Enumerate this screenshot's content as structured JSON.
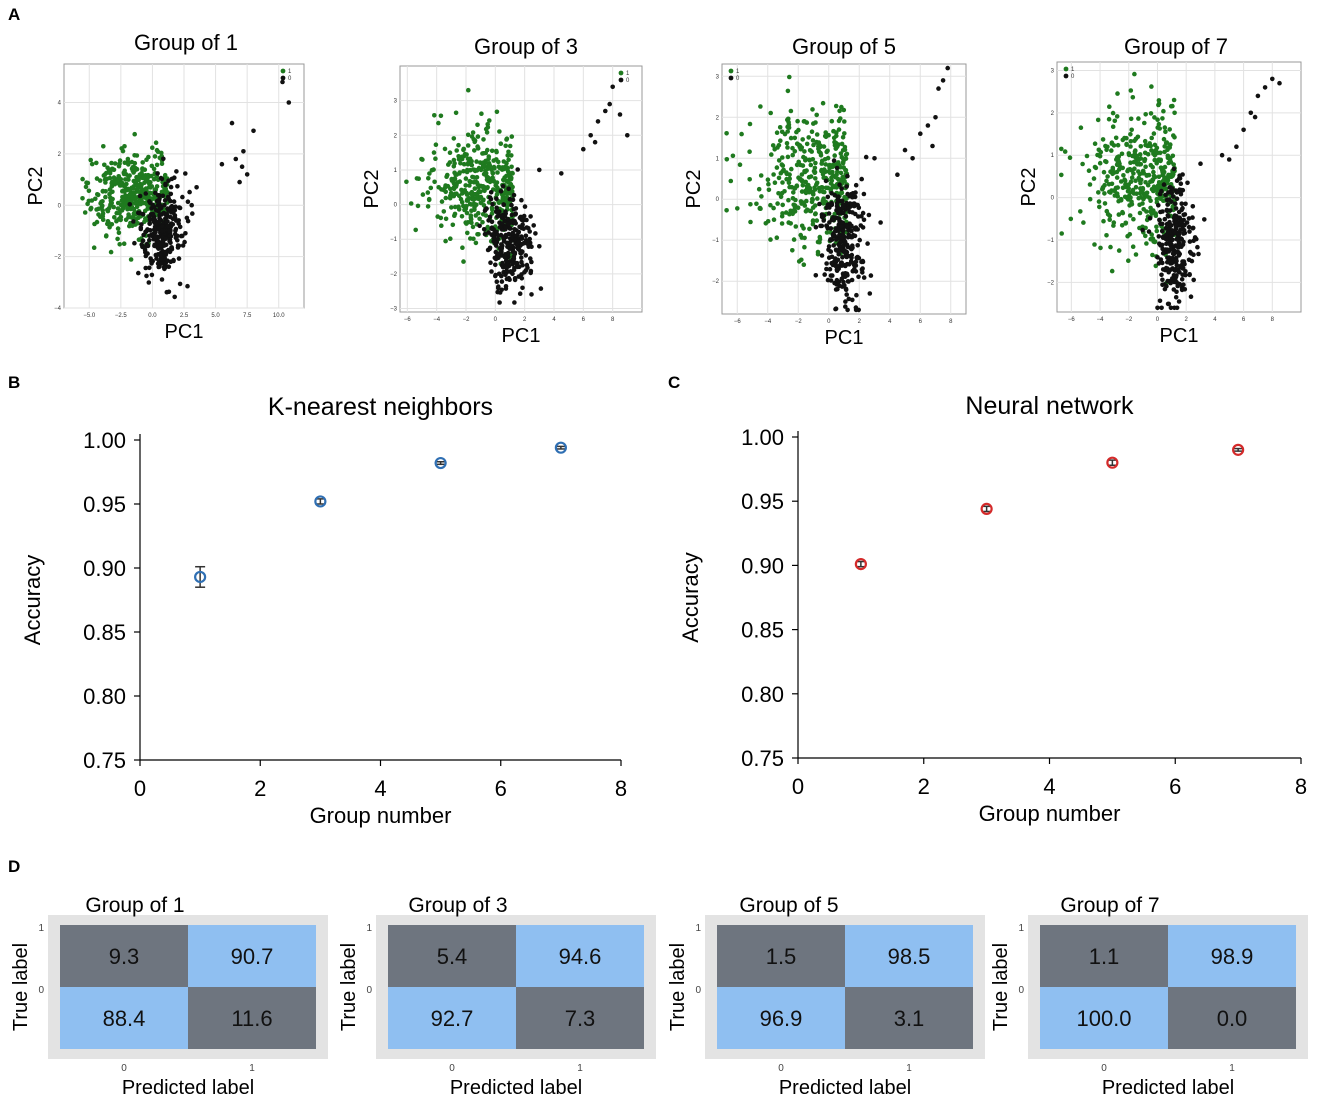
{
  "panel_letters": [
    "A",
    "B",
    "C",
    "D"
  ],
  "chart_data": [
    {
      "type": "scatter",
      "panel": "A",
      "title": "Group of 1",
      "xlabel": "PC1",
      "ylabel": "PC2",
      "xlim": [
        -7,
        12
      ],
      "ylim": [
        -4,
        5.5
      ],
      "xticks": [
        -5.0,
        -2.5,
        0.0,
        2.5,
        5.0,
        7.5,
        10.0
      ],
      "xtick_labels": [
        "−5.0",
        "−2.5",
        "0.0",
        "2.5",
        "5.0",
        "7.5",
        "10.0"
      ],
      "yticks": [
        -4,
        -2,
        0,
        2,
        4
      ],
      "ytick_labels": [
        "−4",
        "−2",
        "0",
        "2",
        "4"
      ],
      "legend": [
        "1",
        "0"
      ],
      "legend_position": "top-right",
      "series": [
        {
          "name": "1",
          "color": "#1f7a1f",
          "center": [
            -1.5,
            0.4
          ],
          "spread": [
            1.9,
            0.85
          ],
          "count": 420
        },
        {
          "name": "0",
          "color": "#111111",
          "center": [
            0.8,
            -1.0
          ],
          "spread": [
            0.9,
            0.85
          ],
          "count": 300,
          "tail": [
            [
              3.5,
              0.7
            ],
            [
              5.5,
              1.6
            ],
            [
              6.6,
              1.8
            ],
            [
              7.2,
              2.1
            ],
            [
              7.5,
              1.2
            ],
            [
              6.9,
              0.9
            ],
            [
              8.0,
              2.9
            ],
            [
              6.3,
              3.2
            ],
            [
              10.3,
              4.8
            ],
            [
              10.8,
              4.0
            ],
            [
              7.1,
              1.5
            ]
          ]
        }
      ]
    },
    {
      "type": "scatter",
      "panel": "A",
      "title": "Group of 3",
      "xlabel": "PC1",
      "ylabel": "PC2",
      "xlim": [
        -6.5,
        10
      ],
      "ylim": [
        -3.1,
        4
      ],
      "xticks": [
        -6,
        -4,
        -2,
        0,
        2,
        4,
        6,
        8
      ],
      "xtick_labels": [
        "−6",
        "−4",
        "−2",
        "0",
        "2",
        "4",
        "6",
        "8"
      ],
      "yticks": [
        -3,
        -2,
        -1,
        0,
        1,
        2,
        3
      ],
      "ytick_labels": [
        "−3",
        "−2",
        "−1",
        "0",
        "1",
        "2",
        "3"
      ],
      "legend": [
        "1",
        "0"
      ],
      "legend_position": "top-right",
      "series": [
        {
          "name": "1",
          "color": "#1f7a1f",
          "center": [
            -1.0,
            0.5
          ],
          "spread": [
            1.9,
            0.8
          ],
          "count": 420
        },
        {
          "name": "0",
          "color": "#111111",
          "center": [
            1.0,
            -1.2
          ],
          "spread": [
            0.8,
            0.7
          ],
          "count": 280,
          "tail": [
            [
              3.0,
              1.0
            ],
            [
              4.5,
              0.9
            ],
            [
              6.0,
              1.6
            ],
            [
              6.5,
              2.0
            ],
            [
              7.0,
              2.4
            ],
            [
              7.5,
              2.7
            ],
            [
              8.0,
              3.4
            ],
            [
              8.5,
              2.6
            ],
            [
              7.8,
              2.9
            ],
            [
              9.0,
              2.0
            ],
            [
              6.8,
              1.8
            ]
          ]
        }
      ]
    },
    {
      "type": "scatter",
      "panel": "A",
      "title": "Group of 5",
      "xlabel": "PC1",
      "ylabel": "PC2",
      "xlim": [
        -7,
        9
      ],
      "ylim": [
        -2.8,
        3.3
      ],
      "xticks": [
        -6,
        -4,
        -2,
        0,
        2,
        4,
        6,
        8
      ],
      "xtick_labels": [
        "−6",
        "−4",
        "−2",
        "0",
        "2",
        "4",
        "6",
        "8"
      ],
      "yticks": [
        -2,
        -1,
        0,
        1,
        2,
        3
      ],
      "ytick_labels": [
        "−2",
        "−1",
        "0",
        "1",
        "2",
        "3"
      ],
      "legend": [
        "1",
        "0"
      ],
      "legend_position": "top-left",
      "series": [
        {
          "name": "1",
          "color": "#1f7a1f",
          "center": [
            -1.0,
            0.5
          ],
          "spread": [
            2.0,
            0.85
          ],
          "count": 420
        },
        {
          "name": "0",
          "color": "#111111",
          "center": [
            1.0,
            -1.0
          ],
          "spread": [
            0.7,
            0.75
          ],
          "count": 280,
          "tail": [
            [
              3.0,
              1.0
            ],
            [
              4.5,
              0.6
            ],
            [
              5.5,
              1.0
            ],
            [
              6.0,
              1.6
            ],
            [
              6.5,
              1.8
            ],
            [
              7.0,
              2.0
            ],
            [
              7.2,
              2.7
            ],
            [
              7.5,
              2.9
            ],
            [
              7.8,
              3.2
            ],
            [
              6.8,
              1.3
            ],
            [
              5.0,
              1.2
            ]
          ]
        }
      ]
    },
    {
      "type": "scatter",
      "panel": "A",
      "title": "Group of 7",
      "xlabel": "PC1",
      "ylabel": "PC2",
      "xlim": [
        -7,
        10
      ],
      "ylim": [
        -2.7,
        3.2
      ],
      "xticks": [
        -6,
        -4,
        -2,
        0,
        2,
        4,
        6,
        8
      ],
      "xtick_labels": [
        "−6",
        "−4",
        "−2",
        "0",
        "2",
        "4",
        "6",
        "8"
      ],
      "yticks": [
        -2,
        -1,
        0,
        1,
        2,
        3
      ],
      "ytick_labels": [
        "−2",
        "−1",
        "0",
        "1",
        "2",
        "3"
      ],
      "legend": [
        "1",
        "0"
      ],
      "legend_position": "top-left",
      "series": [
        {
          "name": "1",
          "color": "#1f7a1f",
          "center": [
            -1.0,
            0.5
          ],
          "spread": [
            2.0,
            0.85
          ],
          "count": 420
        },
        {
          "name": "0",
          "color": "#111111",
          "center": [
            1.2,
            -1.0
          ],
          "spread": [
            0.6,
            0.75
          ],
          "count": 280,
          "tail": [
            [
              3.0,
              0.8
            ],
            [
              4.5,
              1.0
            ],
            [
              5.5,
              1.2
            ],
            [
              6.0,
              1.6
            ],
            [
              6.5,
              2.0
            ],
            [
              7.0,
              2.4
            ],
            [
              7.5,
              2.6
            ],
            [
              8.0,
              2.8
            ],
            [
              8.5,
              2.7
            ],
            [
              6.8,
              1.9
            ],
            [
              5.0,
              0.9
            ]
          ]
        }
      ]
    },
    {
      "type": "scatter",
      "panel": "B",
      "title": "K-nearest neighbors",
      "xlabel": "Group number",
      "ylabel": "Accuracy",
      "xlim": [
        0,
        8
      ],
      "ylim": [
        0.75,
        1.0
      ],
      "xticks": [
        0,
        2,
        4,
        6,
        8
      ],
      "xtick_labels": [
        "0",
        "2",
        "4",
        "6",
        "8"
      ],
      "yticks": [
        0.75,
        0.8,
        0.85,
        0.9,
        0.95,
        1.0
      ],
      "ytick_labels": [
        "0.75",
        "0.80",
        "0.85",
        "0.90",
        "0.95",
        "1.00"
      ],
      "marker_color": "#2f6fb3",
      "x": [
        1,
        3,
        5,
        7
      ],
      "y": [
        0.893,
        0.952,
        0.982,
        0.994
      ],
      "error": [
        0.008,
        0.002,
        0.001,
        0.001
      ]
    },
    {
      "type": "scatter",
      "panel": "C",
      "title": "Neural network",
      "xlabel": "Group number",
      "ylabel": "Accuracy",
      "xlim": [
        0,
        8
      ],
      "ylim": [
        0.75,
        1.0
      ],
      "xticks": [
        0,
        2,
        4,
        6,
        8
      ],
      "xtick_labels": [
        "0",
        "2",
        "4",
        "6",
        "8"
      ],
      "yticks": [
        0.75,
        0.8,
        0.85,
        0.9,
        0.95,
        1.0
      ],
      "ytick_labels": [
        "0.75",
        "0.80",
        "0.85",
        "0.90",
        "0.95",
        "1.00"
      ],
      "marker_color": "#d42a2a",
      "x": [
        1,
        3,
        5,
        7
      ],
      "y": [
        0.901,
        0.944,
        0.98,
        0.99
      ],
      "error": [
        0.002,
        0.002,
        0.002,
        0.001
      ]
    },
    {
      "type": "heatmap",
      "panel": "D",
      "title": "Group of 1",
      "xlabel": "Predicted label",
      "ylabel": "True label",
      "xtick_labels": [
        "0",
        "1"
      ],
      "ytick_labels": [
        "1",
        "0"
      ],
      "cells": [
        [
          "9.3",
          "90.7"
        ],
        [
          "88.4",
          "11.6"
        ]
      ],
      "cell_colors": [
        [
          "#6e757f",
          "#8fbff1"
        ],
        [
          "#8fbff1",
          "#6e757f"
        ]
      ]
    },
    {
      "type": "heatmap",
      "panel": "D",
      "title": "Group of 3",
      "xlabel": "Predicted label",
      "ylabel": "True label",
      "xtick_labels": [
        "0",
        "1"
      ],
      "ytick_labels": [
        "1",
        "0"
      ],
      "cells": [
        [
          "5.4",
          "94.6"
        ],
        [
          "92.7",
          "7.3"
        ]
      ],
      "cell_colors": [
        [
          "#6e757f",
          "#8fbff1"
        ],
        [
          "#8fbff1",
          "#6e757f"
        ]
      ]
    },
    {
      "type": "heatmap",
      "panel": "D",
      "title": "Group of 5",
      "xlabel": "Predicted label",
      "ylabel": "True label",
      "xtick_labels": [
        "0",
        "1"
      ],
      "ytick_labels": [
        "1",
        "0"
      ],
      "cells": [
        [
          "1.5",
          "98.5"
        ],
        [
          "96.9",
          "3.1"
        ]
      ],
      "cell_colors": [
        [
          "#6e757f",
          "#8fbff1"
        ],
        [
          "#8fbff1",
          "#6e757f"
        ]
      ]
    },
    {
      "type": "heatmap",
      "panel": "D",
      "title": "Group of 7",
      "xlabel": "Predicted label",
      "ylabel": "True label",
      "xtick_labels": [
        "0",
        "1"
      ],
      "ytick_labels": [
        "1",
        "0"
      ],
      "cells": [
        [
          "1.1",
          "98.9"
        ],
        [
          "100.0",
          "0.0"
        ]
      ],
      "cell_colors": [
        [
          "#6e757f",
          "#8fbff1"
        ],
        [
          "#8fbff1",
          "#6e757f"
        ]
      ]
    }
  ]
}
